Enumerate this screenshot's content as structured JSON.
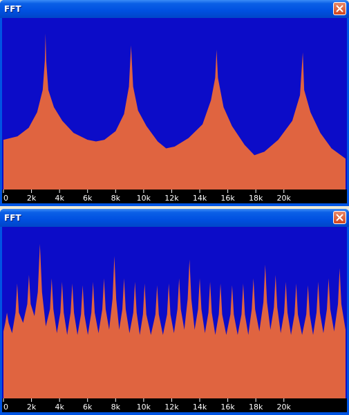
{
  "chart_data": [
    {
      "type": "area",
      "title": "FFT",
      "color": "#e06440",
      "background": "#0c0cc8",
      "xlim": [
        0,
        24400
      ],
      "ylim": [
        0,
        100
      ],
      "xticks": [
        0,
        {
          "value": 2000,
          "label": "2k"
        },
        {
          "value": 4000,
          "label": "4k"
        },
        {
          "value": 6000,
          "label": "6k"
        },
        {
          "value": 8000,
          "label": "8k"
        },
        {
          "value": 10000,
          "label": "10k"
        },
        {
          "value": 12000,
          "label": "12k"
        },
        {
          "value": 14000,
          "label": "14k"
        },
        {
          "value": 16000,
          "label": "16k"
        },
        {
          "value": 18000,
          "label": "18k"
        },
        {
          "value": 20000,
          "label": "20k"
        }
      ],
      "x": [
        0,
        1000,
        1800,
        2400,
        2800,
        2950,
        3000,
        3050,
        3200,
        3600,
        4200,
        5000,
        6000,
        6600,
        7200,
        8000,
        8600,
        8950,
        9100,
        9250,
        9600,
        10200,
        11000,
        11600,
        12200,
        13200,
        14200,
        14800,
        15100,
        15200,
        15300,
        15700,
        16300,
        17200,
        17900,
        18600,
        19600,
        20600,
        21150,
        21350,
        21450,
        21900,
        22600,
        23400,
        24400
      ],
      "values": [
        29,
        31,
        36,
        45,
        58,
        75,
        91,
        75,
        58,
        48,
        40,
        33,
        29,
        28,
        29,
        34,
        44,
        60,
        84,
        60,
        46,
        37,
        28,
        24,
        25,
        30,
        38,
        52,
        65,
        81.5,
        65,
        48,
        37,
        26,
        20,
        22,
        29,
        40,
        55,
        80,
        58,
        45,
        33,
        24,
        18
      ]
    },
    {
      "type": "area",
      "title": "FFT",
      "color": "#e06440",
      "background": "#0c0cc8",
      "xlim": [
        0,
        24400
      ],
      "ylim": [
        0,
        100
      ],
      "xticks": [
        0,
        {
          "value": 2000,
          "label": "2k"
        },
        {
          "value": 4000,
          "label": "4k"
        },
        {
          "value": 6000,
          "label": "6k"
        },
        {
          "value": 8000,
          "label": "8k"
        },
        {
          "value": 10000,
          "label": "10k"
        },
        {
          "value": 12000,
          "label": "12k"
        },
        {
          "value": 14000,
          "label": "14k"
        },
        {
          "value": 16000,
          "label": "16k"
        },
        {
          "value": 18000,
          "label": "18k"
        },
        {
          "value": 20000,
          "label": "20k"
        }
      ],
      "x": [
        0,
        130,
        250,
        370,
        615,
        860,
        980,
        1100,
        1400,
        1700,
        1820,
        1940,
        2210,
        2450,
        2600,
        2750,
        3020,
        3320,
        3440,
        3560,
        3810,
        4060,
        4180,
        4300,
        4545,
        4790,
        4910,
        5030,
        5280,
        5530,
        5650,
        5770,
        6020,
        6270,
        6390,
        6510,
        6780,
        7050,
        7170,
        7290,
        7540,
        7780,
        7910,
        8040,
        8255,
        8480,
        8600,
        8720,
        8990,
        9260,
        9380,
        9500,
        9725,
        9950,
        10070,
        10190,
        10515,
        10840,
        10960,
        11080,
        11375,
        11670,
        11790,
        11910,
        12160,
        12410,
        12530,
        12650,
        12900,
        13140,
        13270,
        13400,
        13635,
        13880,
        14000,
        14120,
        14370,
        14620,
        14740,
        14860,
        15110,
        15360,
        15480,
        15600,
        15895,
        16190,
        16310,
        16430,
        16705,
        16980,
        17100,
        17220,
        17465,
        17710,
        17830,
        17950,
        18250,
        18540,
        18670,
        18800,
        19040,
        19290,
        19410,
        19530,
        19775,
        20020,
        20140,
        20260,
        20510,
        20760,
        20880,
        21000,
        21300,
        21600,
        21720,
        21840,
        22085,
        22330,
        22450,
        22570,
        22820,
        23070,
        23190,
        23310,
        23585,
        23860,
        23980,
        24100,
        24400
      ],
      "values": [
        39,
        44,
        50,
        44,
        38,
        50,
        67,
        50,
        44,
        55,
        72,
        55,
        48,
        62,
        90,
        62,
        42,
        52,
        70,
        52,
        38,
        50,
        68,
        50,
        37,
        50,
        67,
        50,
        37,
        49,
        66,
        49,
        37,
        50,
        68,
        50,
        38,
        52,
        70,
        52,
        40,
        58,
        83,
        58,
        40,
        52,
        70,
        52,
        38,
        50,
        68,
        50,
        37,
        49,
        67,
        49,
        37,
        49,
        66,
        49,
        37,
        49,
        67,
        49,
        38,
        52,
        70,
        52,
        40,
        58,
        81,
        58,
        40,
        52,
        70,
        52,
        38,
        50,
        68,
        50,
        37,
        49,
        67,
        49,
        37,
        49,
        66,
        49,
        37,
        49,
        67,
        49,
        37,
        52,
        70,
        52,
        39,
        56,
        78,
        56,
        40,
        53,
        72,
        53,
        38,
        50,
        68,
        50,
        37,
        49,
        67,
        49,
        37,
        49,
        66,
        49,
        37,
        50,
        68,
        50,
        38,
        52,
        70,
        52,
        39,
        55,
        76,
        55,
        40
      ]
    }
  ]
}
